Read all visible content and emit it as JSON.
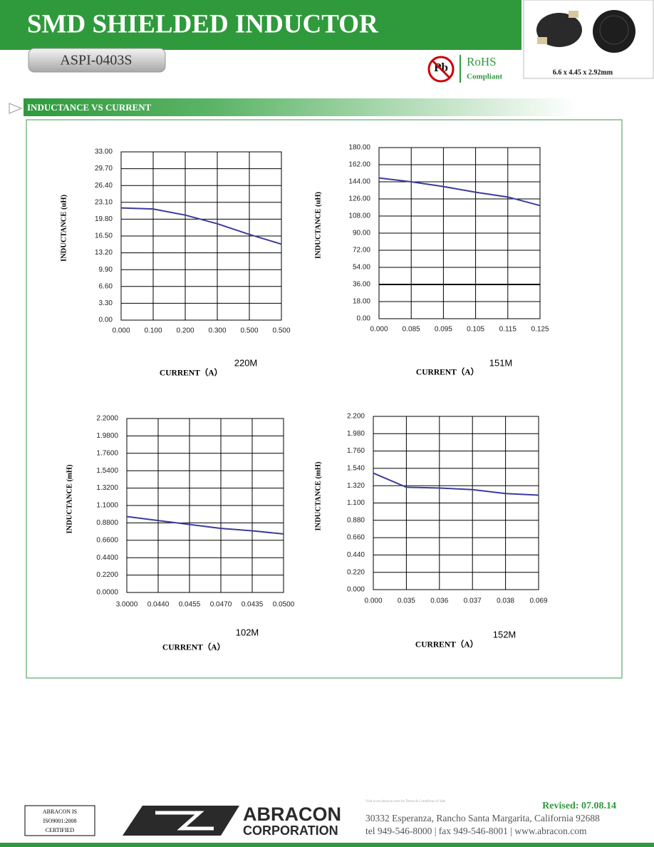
{
  "header": {
    "title": "SMD SHIELDED INDUCTOR",
    "part_number": "ASPI-0403S",
    "rohs_symbol": "Pb",
    "rohs": "RoHS",
    "rohs_note": "Compliant",
    "dimensions": "6.6 x 4.45 x 2.92mm"
  },
  "section_title": "INDUCTANCE VS CURRENT",
  "chart_data": [
    {
      "type": "line",
      "label": "220M",
      "x_label": "CURRENT（A）",
      "y_label": "INDUCTANCE (uH)",
      "categories": [
        "0.000",
        "0.100",
        "0.200",
        "0.300",
        "0.500",
        "0.500"
      ],
      "series": [
        {
          "color": "#3c3c9c",
          "values": [
            22.0,
            21.8,
            20.6,
            18.9,
            16.8,
            14.9
          ]
        }
      ],
      "ylim": [
        0,
        33
      ],
      "grid": true,
      "yticks": [
        {
          "value": 0,
          "label": "0.00"
        },
        {
          "value": 3.3,
          "label": "3.30"
        },
        {
          "value": 6.6,
          "label": "6.60"
        },
        {
          "value": 9.9,
          "label": "9.90"
        },
        {
          "value": 13.2,
          "label": "13.20"
        },
        {
          "value": 16.5,
          "label": "16.50"
        },
        {
          "value": 19.8,
          "label": "19.80"
        },
        {
          "value": 23.1,
          "label": "23.10"
        },
        {
          "value": 26.4,
          "label": "26.40"
        },
        {
          "value": 29.7,
          "label": "29.70"
        },
        {
          "value": 33,
          "label": "33.00"
        }
      ]
    },
    {
      "type": "line",
      "label": "151M",
      "x_label": "CURRENT（A）",
      "y_label": "INDUCTANCE (uH)",
      "categories": [
        "0.000",
        "0.085",
        "0.095",
        "0.105",
        "0.115",
        "0.125"
      ],
      "series": [
        {
          "color": "#3c3c9c",
          "values": [
            148,
            144,
            139,
            133,
            128,
            119
          ]
        },
        {
          "color": "#000000",
          "values": [
            36,
            36,
            36,
            36,
            36,
            36
          ]
        }
      ],
      "ylim": [
        0,
        180
      ],
      "grid": true,
      "yticks": [
        {
          "value": 0,
          "label": "0.00"
        },
        {
          "value": 18,
          "label": "18.00"
        },
        {
          "value": 36,
          "label": "36.00"
        },
        {
          "value": 54,
          "label": "54.00"
        },
        {
          "value": 72,
          "label": "72.00"
        },
        {
          "value": 90,
          "label": "90.00"
        },
        {
          "value": 108,
          "label": "108.00"
        },
        {
          "value": 126,
          "label": "126.00"
        },
        {
          "value": 144,
          "label": "144.00"
        },
        {
          "value": 162,
          "label": "162.00"
        },
        {
          "value": 180,
          "label": "180.00"
        }
      ]
    },
    {
      "type": "line",
      "label": "102M",
      "x_label": "CURRENT（A）",
      "y_label": "INDUCTANCE (mH)",
      "categories": [
        "3.0000",
        "0.0440",
        "0.0455",
        "0.0470",
        "0.0435",
        "0.0500"
      ],
      "series": [
        {
          "color": "#3c3c9c",
          "values": [
            0.96,
            0.91,
            0.86,
            0.81,
            0.78,
            0.74
          ]
        }
      ],
      "ylim": [
        0,
        2.2
      ],
      "grid": true,
      "yticks": [
        {
          "value": 0,
          "label": "0.0000"
        },
        {
          "value": 0.22,
          "label": "0.2200"
        },
        {
          "value": 0.44,
          "label": "0.4400"
        },
        {
          "value": 0.66,
          "label": "0.6600"
        },
        {
          "value": 0.88,
          "label": "0.8800"
        },
        {
          "value": 1.1,
          "label": "1.1000"
        },
        {
          "value": 1.32,
          "label": "1.3200"
        },
        {
          "value": 1.54,
          "label": "1.5400"
        },
        {
          "value": 1.76,
          "label": "1.7600"
        },
        {
          "value": 1.98,
          "label": "1.9800"
        },
        {
          "value": 2.2,
          "label": "2.2000"
        }
      ]
    },
    {
      "type": "line",
      "label": "152M",
      "x_label": "CURRENT（A）",
      "y_label": "INDUCTANCE (mH)",
      "categories": [
        "0.000",
        "0.035",
        "0.036",
        "0.037",
        "0.038",
        "0.069"
      ],
      "series": [
        {
          "color": "#3c3c9c",
          "values": [
            1.48,
            1.3,
            1.29,
            1.27,
            1.22,
            1.2
          ]
        }
      ],
      "ylim": [
        0,
        2.2
      ],
      "grid": true,
      "yticks": [
        {
          "value": 0,
          "label": "0.000"
        },
        {
          "value": 0.22,
          "label": "0.220"
        },
        {
          "value": 0.44,
          "label": "0.440"
        },
        {
          "value": 0.66,
          "label": "0.660"
        },
        {
          "value": 0.88,
          "label": "0.880"
        },
        {
          "value": 1.1,
          "label": "1.100"
        },
        {
          "value": 1.32,
          "label": "1.320"
        },
        {
          "value": 1.54,
          "label": "1.540"
        },
        {
          "value": 1.76,
          "label": "1.760"
        },
        {
          "value": 1.98,
          "label": "1.980"
        },
        {
          "value": 2.2,
          "label": "2.200"
        }
      ]
    }
  ],
  "footer": {
    "certification": [
      "ABRACON IS",
      "ISO9001:2008",
      "CERTIFIED"
    ],
    "logo_name": "ABRACON",
    "logo_sub": "CORPORATION",
    "terms": "Visit www.abracon.com for Terms & Conditions of Sale",
    "revised": "Revised: 07.08.14",
    "address": "30332 Esperanza, Rancho Santa Margarita, California 92688",
    "contact": "tel 949-546-8000   |   fax 949-546-8001   |   www.abracon.com"
  }
}
